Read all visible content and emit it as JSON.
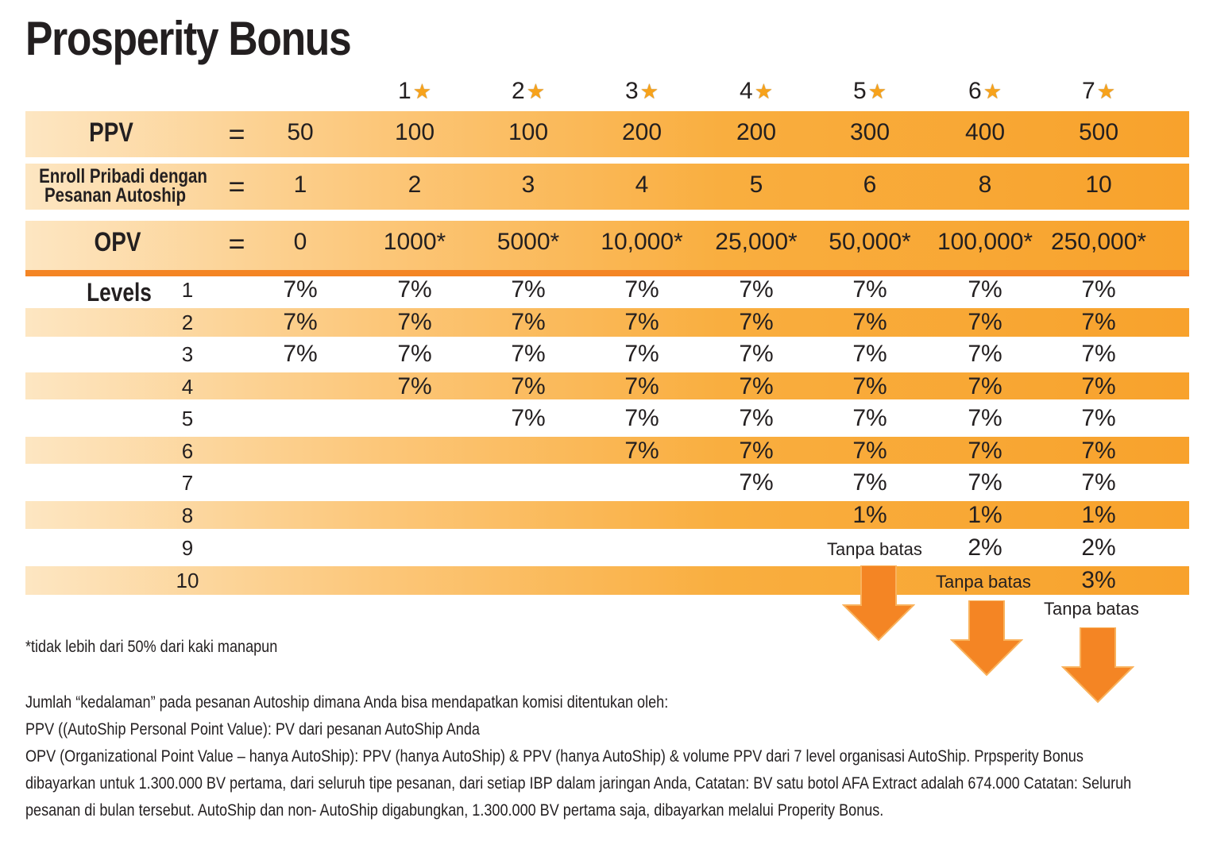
{
  "title": "Prosperity Bonus",
  "stars": [
    "1",
    "2",
    "3",
    "4",
    "5",
    "6",
    "7"
  ],
  "rows": {
    "ppv": {
      "label": "PPV",
      "eq": "=",
      "values": [
        "50",
        "100",
        "100",
        "200",
        "200",
        "300",
        "400",
        "500"
      ]
    },
    "enroll": {
      "label_line1": "Enroll Pribadi dengan",
      "label_line2": "Pesanan Autoship",
      "eq": "=",
      "values": [
        "1",
        "2",
        "3",
        "4",
        "5",
        "6",
        "8",
        "10"
      ]
    },
    "opv": {
      "label": "OPV",
      "eq": "=",
      "values": [
        "0",
        "1000*",
        "5000*",
        "10,000*",
        "25,000*",
        "50,000*",
        "100,000*",
        "250,000*"
      ]
    }
  },
  "levels_label": "Levels",
  "levels": [
    {
      "level": "1",
      "values": [
        "7%",
        "7%",
        "7%",
        "7%",
        "7%",
        "7%",
        "7%",
        "7%"
      ]
    },
    {
      "level": "2",
      "values": [
        "7%",
        "7%",
        "7%",
        "7%",
        "7%",
        "7%",
        "7%",
        "7%"
      ]
    },
    {
      "level": "3",
      "values": [
        "7%",
        "7%",
        "7%",
        "7%",
        "7%",
        "7%",
        "7%",
        "7%"
      ]
    },
    {
      "level": "4",
      "values": [
        "",
        "7%",
        "7%",
        "7%",
        "7%",
        "7%",
        "7%",
        "7%"
      ]
    },
    {
      "level": "5",
      "values": [
        "",
        "",
        "7%",
        "7%",
        "7%",
        "7%",
        "7%",
        "7%"
      ]
    },
    {
      "level": "6",
      "values": [
        "",
        "",
        "",
        "7%",
        "7%",
        "7%",
        "7%",
        "7%"
      ]
    },
    {
      "level": "7",
      "values": [
        "",
        "",
        "",
        "",
        "7%",
        "7%",
        "7%",
        "7%"
      ]
    },
    {
      "level": "8",
      "values": [
        "",
        "",
        "",
        "",
        "",
        "1%",
        "1%",
        "1%"
      ]
    },
    {
      "level": "9",
      "values": [
        "",
        "",
        "",
        "",
        "",
        "",
        "2%",
        "2%"
      ]
    },
    {
      "level": "10",
      "values": [
        "",
        "",
        "",
        "",
        "",
        "",
        "",
        "3%"
      ]
    }
  ],
  "unlimited_label": "Tanpa batas",
  "footnote": "*tidak lebih dari 50% dari kaki manapun",
  "description": [
    "Jumlah “kedalaman” pada pesanan Autoship dimana Anda bisa mendapatkan komisi ditentukan oleh:",
    "PPV ((AutoShip Personal Point Value): PV dari pesanan AutoShip Anda",
    "OPV (Organizational Point Value – hanya AutoShip): PPV (hanya AutoShip) & PPV  (hanya AutoShip) & volume PPV dari 7 level organisasi AutoShip. Prpsperity Bonus",
    "dibayarkan untuk 1.300.000 BV pertama, dari seluruh tipe pesanan, dari setiap IBP dalam jaringan Anda, Catatan: BV satu botol AFA Extract adalah 674.000 Catatan: Seluruh",
    "pesanan di bulan tersebut. AutoShip dan non- AutoShip digabungkan, 1.300.000  BV pertama saja, dibayarkan melalui Properity Bonus."
  ],
  "colors": {
    "band_light": "#fde6c2",
    "band_dark": "#f8a22c",
    "arrow": "#f48524",
    "star": "#f7a21b"
  }
}
